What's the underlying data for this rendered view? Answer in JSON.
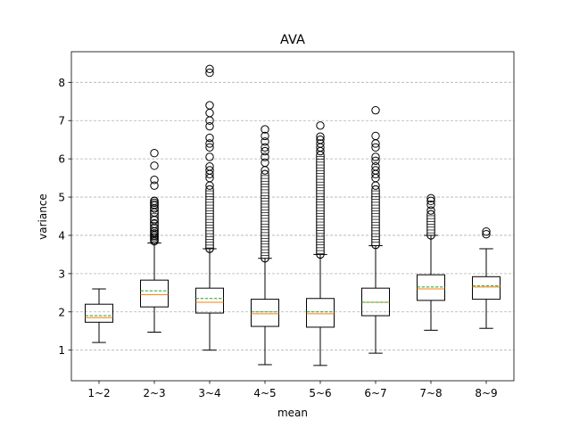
{
  "chart_data": {
    "type": "boxplot",
    "title": "AVA",
    "xlabel": "mean",
    "ylabel": "variance",
    "ylim": [
      0.2,
      8.8
    ],
    "yticks": [
      1,
      2,
      3,
      4,
      5,
      6,
      7,
      8
    ],
    "grid": "y-dashed",
    "colors": {
      "median": "#ff7f0e",
      "mean": "#2ca02c",
      "grid": "#b0b0b0",
      "box": "#000000"
    },
    "categories": [
      "1~2",
      "2~3",
      "3~4",
      "4~5",
      "5~6",
      "6~7",
      "7~8",
      "8~9"
    ],
    "boxes": [
      {
        "label": "1~2",
        "whisker_low": 1.2,
        "q1": 1.73,
        "median": 1.85,
        "mean": 1.9,
        "q3": 2.2,
        "whisker_high": 2.6,
        "outliers_dense": [],
        "outliers": []
      },
      {
        "label": "2~3",
        "whisker_low": 1.47,
        "q1": 2.13,
        "median": 2.45,
        "mean": 2.55,
        "q3": 2.83,
        "whisker_high": 3.8,
        "outliers_dense": [
          3.85,
          4.9
        ],
        "outliers": [
          3.85,
          3.9,
          3.95,
          4.0,
          4.05,
          4.1,
          4.2,
          4.3,
          4.4,
          4.6,
          4.7,
          4.8,
          4.85,
          4.9,
          5.3,
          5.45,
          5.82,
          6.15
        ]
      },
      {
        "label": "3~4",
        "whisker_low": 1.0,
        "q1": 1.97,
        "median": 2.25,
        "mean": 2.35,
        "q3": 2.62,
        "whisker_high": 3.65,
        "outliers_dense": [
          3.65,
          5.2
        ],
        "outliers": [
          5.3,
          5.5,
          5.6,
          5.7,
          5.8,
          6.05,
          6.3,
          6.4,
          6.55,
          6.85,
          7.0,
          7.2,
          7.4,
          8.25,
          8.35
        ]
      },
      {
        "label": "4~5",
        "whisker_low": 0.62,
        "q1": 1.62,
        "median": 1.95,
        "mean": 2.0,
        "q3": 2.33,
        "whisker_high": 3.4,
        "outliers_dense": [
          3.4,
          5.6
        ],
        "outliers": [
          5.7,
          5.9,
          6.05,
          6.2,
          6.3,
          6.45,
          6.6,
          6.77
        ]
      },
      {
        "label": "5~6",
        "whisker_low": 0.6,
        "q1": 1.6,
        "median": 1.95,
        "mean": 2.0,
        "q3": 2.35,
        "whisker_high": 3.5,
        "outliers_dense": [
          3.5,
          6.1
        ],
        "outliers": [
          6.2,
          6.3,
          6.4,
          6.5,
          6.58,
          6.87
        ]
      },
      {
        "label": "6~7",
        "whisker_low": 0.92,
        "q1": 1.9,
        "median": 2.25,
        "mean": 2.25,
        "q3": 2.62,
        "whisker_high": 3.73,
        "outliers_dense": [
          3.75,
          5.2
        ],
        "outliers": [
          5.3,
          5.5,
          5.6,
          5.7,
          5.8,
          5.95,
          6.05,
          6.3,
          6.4,
          6.6,
          7.27
        ]
      },
      {
        "label": "7~8",
        "whisker_low": 1.52,
        "q1": 2.3,
        "median": 2.6,
        "mean": 2.65,
        "q3": 2.97,
        "whisker_high": 4.0,
        "outliers_dense": [
          4.0,
          4.55
        ],
        "outliers": [
          4.65,
          4.8,
          4.9,
          4.97
        ]
      },
      {
        "label": "8~9",
        "whisker_low": 1.57,
        "q1": 2.33,
        "median": 2.65,
        "mean": 2.68,
        "q3": 2.92,
        "whisker_high": 3.65,
        "outliers_dense": [],
        "outliers": [
          4.03,
          4.1
        ]
      }
    ]
  }
}
